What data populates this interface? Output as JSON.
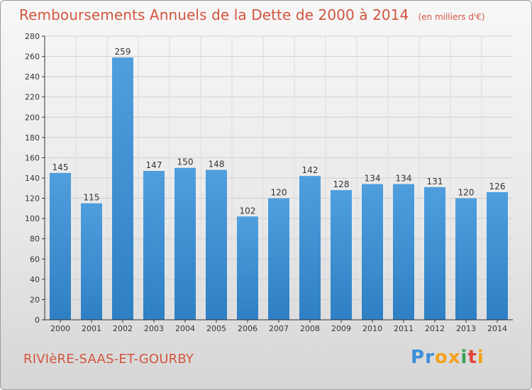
{
  "chart_data": {
    "type": "bar",
    "title": "Remboursements Annuels de la Dette de 2000 à 2014",
    "subtitle": "(en milliers d'€)",
    "categories": [
      "2000",
      "2001",
      "2002",
      "2003",
      "2004",
      "2005",
      "2006",
      "2007",
      "2008",
      "2009",
      "2010",
      "2011",
      "2012",
      "2013",
      "2014"
    ],
    "values": [
      145,
      115,
      259,
      147,
      150,
      148,
      102,
      120,
      142,
      128,
      134,
      134,
      131,
      120,
      126
    ],
    "ylim": [
      0,
      280
    ],
    "yticks": [
      0,
      20,
      40,
      60,
      80,
      100,
      120,
      140,
      160,
      180,
      200,
      220,
      240,
      260,
      280
    ],
    "grid": true,
    "bar_color": "#4f9fde",
    "bar_color_dark": "#2f7fc4"
  },
  "commune": "RIVIèRE-SAAS-ET-GOURBY",
  "logo": {
    "letters": [
      "P",
      "r",
      "o",
      "x",
      "i",
      "t",
      "i"
    ],
    "colors": [
      "#3a8fd8",
      "#3a8fd8",
      "#f3a21b",
      "#f3a21b",
      "#3aa35a",
      "#e0483c",
      "#f3a21b"
    ]
  },
  "colors": {
    "title": "#d2553e",
    "grid": "#cfcfcf",
    "axis": "#333333"
  }
}
